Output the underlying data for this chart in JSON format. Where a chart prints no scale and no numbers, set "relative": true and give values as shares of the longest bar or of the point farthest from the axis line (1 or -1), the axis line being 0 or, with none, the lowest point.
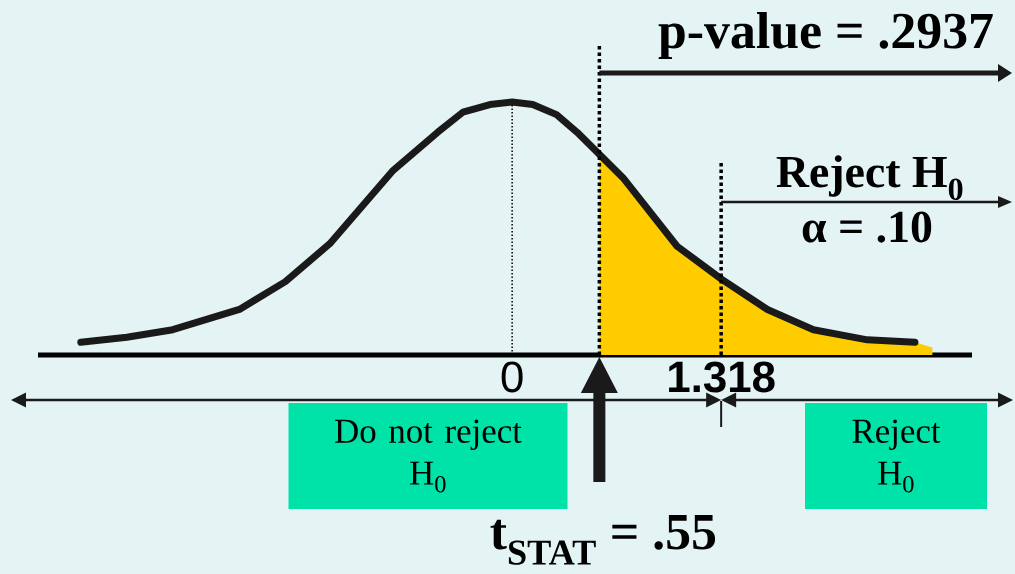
{
  "chart_data": {
    "type": "line",
    "relative": true,
    "series": [
      {
        "color": "#1a1a1a",
        "x": [
          -2.72,
          -2.43,
          -2.14,
          -1.72,
          -1.43,
          -1.15,
          -0.75,
          -0.47,
          -0.31,
          -0.14,
          0,
          0.13,
          0.28,
          0.41,
          0.7,
          1.04,
          1.32,
          1.61,
          1.9,
          2.24,
          2.54
        ],
        "values": [
          0.05,
          0.07,
          0.1,
          0.18,
          0.29,
          0.44,
          0.73,
          0.88,
          0.96,
          0.99,
          1,
          0.99,
          0.95,
          0.88,
          0.7,
          0.43,
          0.3,
          0.18,
          0.1,
          0.06,
          0.05
        ]
      },
      {
        "type": "area",
        "color": "#ffcc00",
        "x": [
          0.55,
          0.7,
          1.04,
          1.32,
          1.61,
          1.9,
          2.24,
          2.54,
          2.65
        ],
        "values": [
          0.79,
          0.7,
          0.43,
          0.3,
          0.18,
          0.1,
          0.06,
          0.05,
          0.03
        ]
      }
    ],
    "xlim": [
      -2.99,
      2.9
    ],
    "xticks": [
      0,
      1.318
    ],
    "tick_labels": "x",
    "ref_lines": [
      {
        "axis": "x",
        "value": 0,
        "line_style": "dotted",
        "color": "#000000"
      },
      {
        "axis": "x",
        "value": 0.55,
        "line_style": "dotted",
        "color": "#000000",
        "label": "t$_{STAT}$ = .55"
      },
      {
        "axis": "x",
        "value": 1.318,
        "line_style": "dotted",
        "color": "#000000"
      }
    ],
    "annotations": [
      "p-value = .2937",
      "Reject H$_{0}$",
      "α = .10",
      "Do not reject H$_{0}$",
      "Reject H$_{0}$"
    ]
  }
}
